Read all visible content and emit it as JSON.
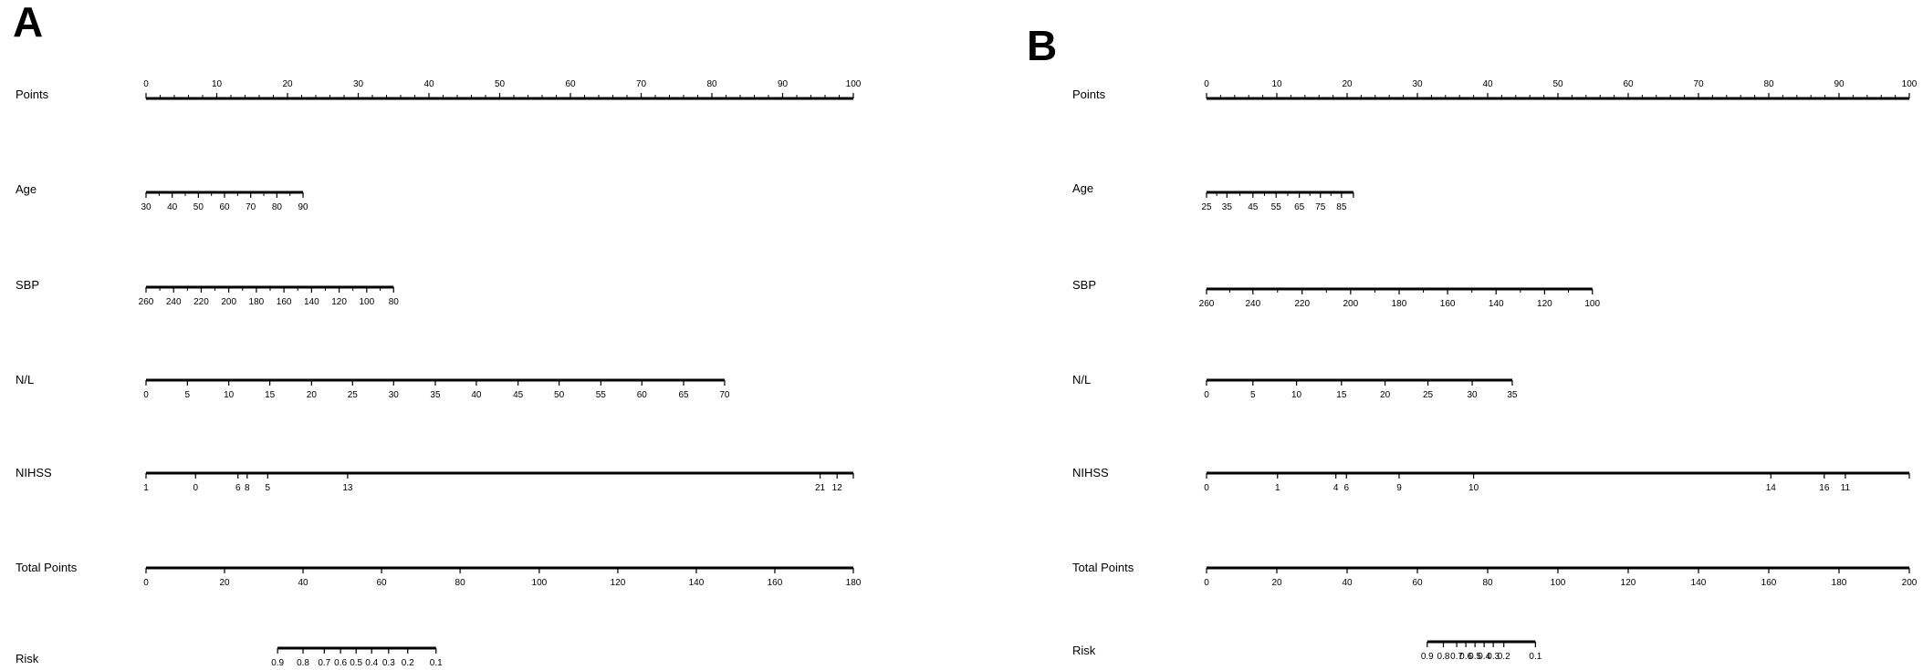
{
  "chart_data": [
    {
      "type": "nomogram",
      "panel": "A",
      "rows": [
        {
          "label": "Points",
          "ticks": [
            {
              "text": "0",
              "pts": 0
            },
            {
              "text": "10",
              "pts": 10
            },
            {
              "text": "20",
              "pts": 20
            },
            {
              "text": "30",
              "pts": 30
            },
            {
              "text": "40",
              "pts": 40
            },
            {
              "text": "50",
              "pts": 50
            },
            {
              "text": "60",
              "pts": 60
            },
            {
              "text": "70",
              "pts": 70
            },
            {
              "text": "80",
              "pts": 80
            },
            {
              "text": "90",
              "pts": 90
            },
            {
              "text": "100",
              "pts": 100
            }
          ],
          "minor": 4,
          "labels_above": true
        },
        {
          "label": "Age",
          "ticks": [
            {
              "text": "30",
              "pts": 0
            },
            {
              "text": "40",
              "pts": 3.7
            },
            {
              "text": "50",
              "pts": 7.4
            },
            {
              "text": "60",
              "pts": 11.1
            },
            {
              "text": "70",
              "pts": 14.8
            },
            {
              "text": "80",
              "pts": 18.5
            },
            {
              "text": "90",
              "pts": 22.2
            }
          ],
          "minor": 1
        },
        {
          "label": "SBP",
          "ticks": [
            {
              "text": "260",
              "pts": 0
            },
            {
              "text": "240",
              "pts": 3.9
            },
            {
              "text": "220",
              "pts": 7.8
            },
            {
              "text": "200",
              "pts": 11.7
            },
            {
              "text": "180",
              "pts": 15.6
            },
            {
              "text": "160",
              "pts": 19.5
            },
            {
              "text": "140",
              "pts": 23.4
            },
            {
              "text": "120",
              "pts": 27.3
            },
            {
              "text": "100",
              "pts": 31.2
            },
            {
              "text": "80",
              "pts": 35.0
            }
          ],
          "minor": 1
        },
        {
          "label": "N/L",
          "ticks": [
            {
              "text": "0",
              "pts": 0
            },
            {
              "text": "5",
              "pts": 5.85
            },
            {
              "text": "10",
              "pts": 11.7
            },
            {
              "text": "15",
              "pts": 17.5
            },
            {
              "text": "20",
              "pts": 23.4
            },
            {
              "text": "25",
              "pts": 29.2
            },
            {
              "text": "30",
              "pts": 35.0
            },
            {
              "text": "35",
              "pts": 40.9
            },
            {
              "text": "40",
              "pts": 46.7
            },
            {
              "text": "45",
              "pts": 52.6
            },
            {
              "text": "50",
              "pts": 58.4
            },
            {
              "text": "55",
              "pts": 64.3
            },
            {
              "text": "60",
              "pts": 70.1
            },
            {
              "text": "65",
              "pts": 76.0
            },
            {
              "text": "70",
              "pts": 81.8
            }
          ],
          "minor": 0
        },
        {
          "label": "NIHSS",
          "ticks": [
            {
              "text": "1",
              "pts": 0
            },
            {
              "text": "0",
              "pts": 7.0
            },
            {
              "text": "6",
              "pts": 13.0
            },
            {
              "text": "8",
              "pts": 14.3
            },
            {
              "text": "5",
              "pts": 17.2
            },
            {
              "text": "13",
              "pts": 28.5
            },
            {
              "text": "21",
              "pts": 95.3
            },
            {
              "text": "12",
              "pts": 97.7
            }
          ],
          "end_pts": 100,
          "minor": 0
        },
        {
          "label": "Total Points",
          "ticks": [
            {
              "text": "0",
              "pts": 0
            },
            {
              "text": "20",
              "pts": 11.1
            },
            {
              "text": "40",
              "pts": 22.2
            },
            {
              "text": "60",
              "pts": 33.3
            },
            {
              "text": "80",
              "pts": 44.4
            },
            {
              "text": "100",
              "pts": 55.6
            },
            {
              "text": "120",
              "pts": 66.7
            },
            {
              "text": "140",
              "pts": 77.8
            },
            {
              "text": "160",
              "pts": 88.9
            },
            {
              "text": "180",
              "pts": 100
            }
          ],
          "minor": 0
        },
        {
          "label": "Risk",
          "ticks": [
            {
              "text": "0.9",
              "pts": 18.6
            },
            {
              "text": "0.8",
              "pts": 22.2
            },
            {
              "text": "0.7",
              "pts": 25.2
            },
            {
              "text": "0.6",
              "pts": 27.5
            },
            {
              "text": "0.5",
              "pts": 29.7
            },
            {
              "text": "0.4",
              "pts": 31.9
            },
            {
              "text": "0.3",
              "pts": 34.3
            },
            {
              "text": "0.2",
              "pts": 37.0
            },
            {
              "text": "0.1",
              "pts": 41.0
            }
          ],
          "minor": 0
        }
      ]
    },
    {
      "type": "nomogram",
      "panel": "B",
      "rows": [
        {
          "label": "Points",
          "ticks": [
            {
              "text": "0",
              "pts": 0
            },
            {
              "text": "10",
              "pts": 10
            },
            {
              "text": "20",
              "pts": 20
            },
            {
              "text": "30",
              "pts": 30
            },
            {
              "text": "40",
              "pts": 40
            },
            {
              "text": "50",
              "pts": 50
            },
            {
              "text": "60",
              "pts": 60
            },
            {
              "text": "70",
              "pts": 70
            },
            {
              "text": "80",
              "pts": 80
            },
            {
              "text": "90",
              "pts": 90
            },
            {
              "text": "100",
              "pts": 100
            }
          ],
          "minor": 4,
          "labels_above": true
        },
        {
          "label": "Age",
          "ticks": [
            {
              "text": "25",
              "pts": 0
            },
            {
              "text": "35",
              "pts": 2.9
            },
            {
              "text": "45",
              "pts": 6.6
            },
            {
              "text": "55",
              "pts": 9.9
            },
            {
              "text": "65",
              "pts": 13.2
            },
            {
              "text": "75",
              "pts": 16.2
            },
            {
              "text": "85",
              "pts": 19.2
            }
          ],
          "end_pts": 20.9,
          "minor": 1
        },
        {
          "label": "SBP",
          "ticks": [
            {
              "text": "260",
              "pts": 0
            },
            {
              "text": "240",
              "pts": 6.6
            },
            {
              "text": "220",
              "pts": 13.6
            },
            {
              "text": "200",
              "pts": 20.5
            },
            {
              "text": "180",
              "pts": 27.4
            },
            {
              "text": "160",
              "pts": 34.3
            },
            {
              "text": "140",
              "pts": 41.2
            },
            {
              "text": "120",
              "pts": 48.1
            },
            {
              "text": "100",
              "pts": 54.9
            }
          ],
          "minor": 1
        },
        {
          "label": "N/L",
          "ticks": [
            {
              "text": "0",
              "pts": 0
            },
            {
              "text": "5",
              "pts": 6.6
            },
            {
              "text": "10",
              "pts": 12.8
            },
            {
              "text": "15",
              "pts": 19.2
            },
            {
              "text": "20",
              "pts": 25.4
            },
            {
              "text": "25",
              "pts": 31.5
            },
            {
              "text": "30",
              "pts": 37.8
            },
            {
              "text": "35",
              "pts": 43.5
            }
          ],
          "minor": 0
        },
        {
          "label": "NIHSS",
          "ticks": [
            {
              "text": "0",
              "pts": 0
            },
            {
              "text": "1",
              "pts": 10.1
            },
            {
              "text": "4",
              "pts": 18.4
            },
            {
              "text": "6",
              "pts": 19.9
            },
            {
              "text": "9",
              "pts": 27.4
            },
            {
              "text": "10",
              "pts": 38.0
            },
            {
              "text": "14",
              "pts": 80.3
            },
            {
              "text": "16",
              "pts": 87.9
            },
            {
              "text": "11",
              "pts": 90.9
            }
          ],
          "end_pts": 100,
          "minor": 0
        },
        {
          "label": "Total Points",
          "ticks": [
            {
              "text": "0",
              "pts": 0
            },
            {
              "text": "20",
              "pts": 10
            },
            {
              "text": "40",
              "pts": 20
            },
            {
              "text": "60",
              "pts": 30
            },
            {
              "text": "80",
              "pts": 40
            },
            {
              "text": "100",
              "pts": 50
            },
            {
              "text": "120",
              "pts": 60
            },
            {
              "text": "140",
              "pts": 70
            },
            {
              "text": "160",
              "pts": 80
            },
            {
              "text": "180",
              "pts": 90
            },
            {
              "text": "200",
              "pts": 100
            }
          ],
          "minor": 0
        },
        {
          "label": "Risk",
          "ticks": [
            {
              "text": "0.9",
              "pts": 31.4
            },
            {
              "text": "0.8",
              "pts": 33.7
            },
            {
              "text": "0.7",
              "pts": 35.6
            },
            {
              "text": "0.6",
              "pts": 36.9
            },
            {
              "text": "0.5",
              "pts": 38.2
            },
            {
              "text": "0.4",
              "pts": 39.5
            },
            {
              "text": "0.3",
              "pts": 40.8
            },
            {
              "text": "0.2",
              "pts": 42.3
            },
            {
              "text": "0.1",
              "pts": 46.8
            }
          ],
          "minor": 0
        }
      ]
    }
  ]
}
